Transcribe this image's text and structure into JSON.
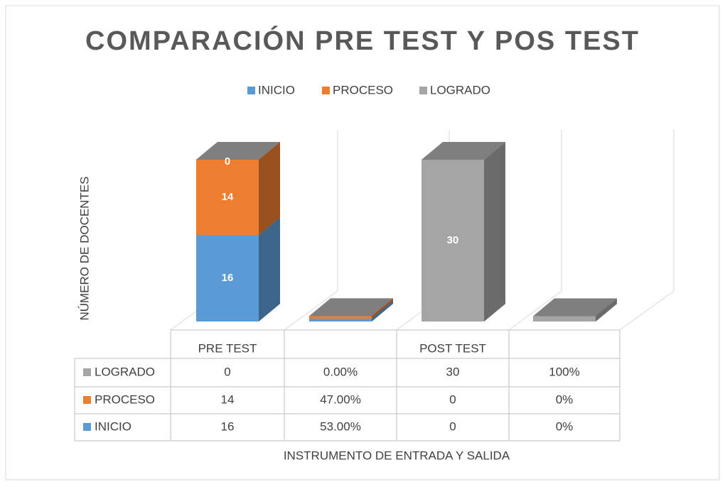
{
  "chart_data": {
    "type": "bar3d_stacked",
    "title": "COMPARACIÓN PRE TEST Y POS TEST",
    "ylabel": "NÚMERO DE DOCENTES",
    "xlabel": "INSTRUMENTO DE ENTRADA Y SALIDA",
    "categories": [
      "PRE TEST",
      null,
      "POST TEST",
      null
    ],
    "series": [
      {
        "name": "INICIO",
        "color": "#5b9bd5",
        "values": [
          16,
          0.53,
          0,
          0
        ],
        "value_labels": [
          "16",
          "53.00%",
          "0",
          "0%"
        ]
      },
      {
        "name": "PROCESO",
        "color": "#ed7d31",
        "values": [
          14,
          0.47,
          0,
          0
        ],
        "value_labels": [
          "14",
          "47.00%",
          "0",
          "0%"
        ]
      },
      {
        "name": "LOGRADO",
        "color": "#a5a5a5",
        "values": [
          0,
          0,
          30,
          1
        ],
        "value_labels": [
          "0",
          "0.00%",
          "30",
          "100%"
        ]
      }
    ],
    "ylim": [
      0,
      35
    ],
    "legend": "top"
  }
}
